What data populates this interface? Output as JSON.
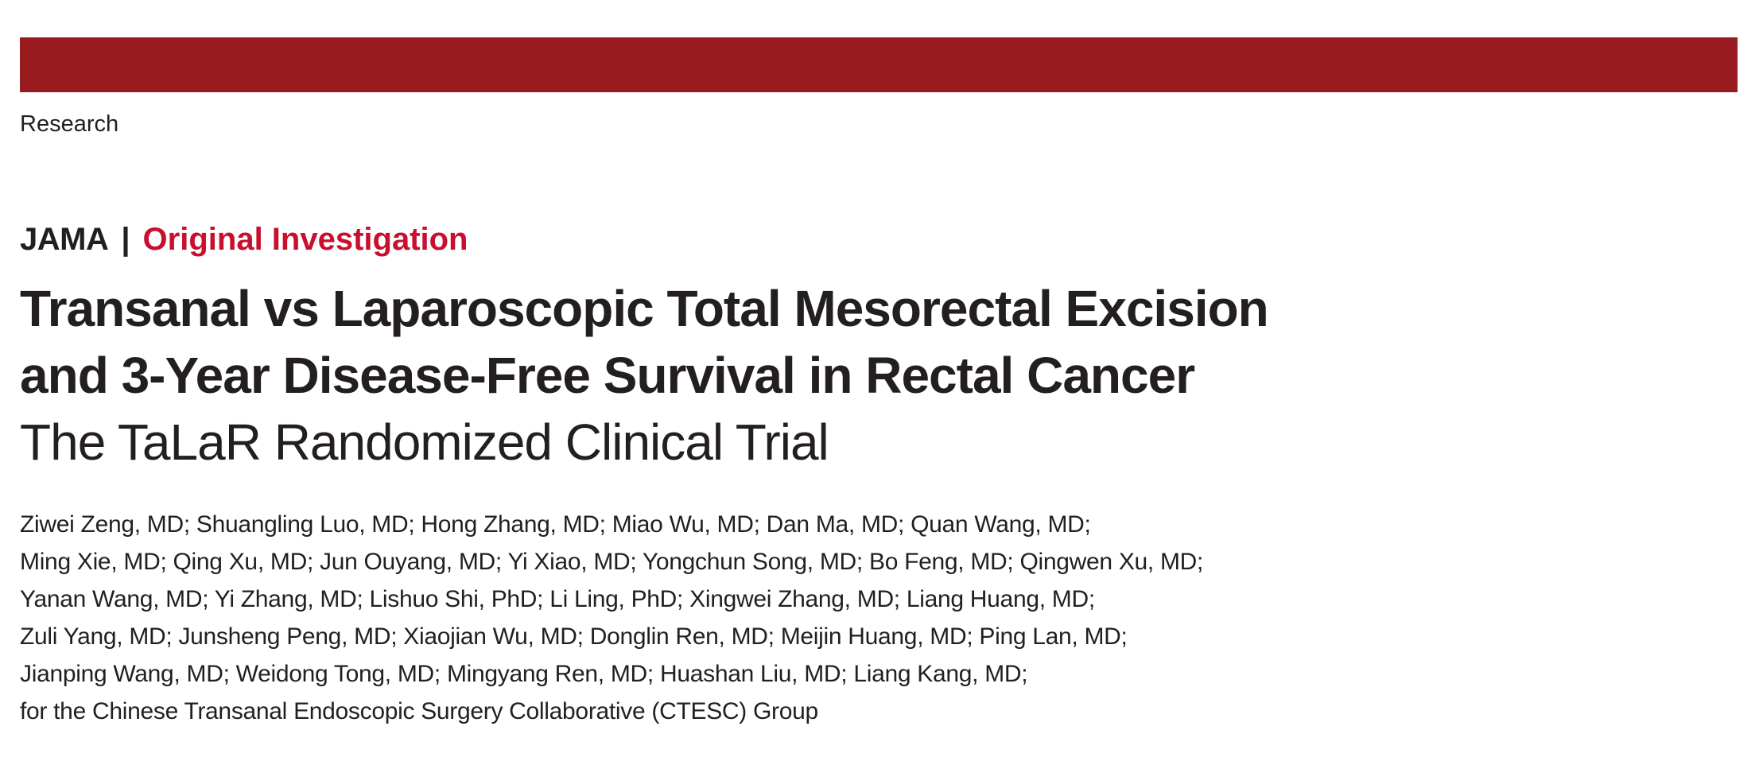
{
  "header": {
    "section": "Research",
    "journal": "JAMA",
    "separator": "|",
    "article_type": "Original Investigation"
  },
  "colors": {
    "top_bar": "#981b20",
    "article_type": "#c8102e",
    "text": "#231f20"
  },
  "title": {
    "lines": [
      "Transanal vs Laparoscopic Total Mesorectal Excision",
      "and 3-Year Disease-Free Survival in Rectal Cancer"
    ],
    "subtitle": "The TaLaR Randomized Clinical Trial"
  },
  "authors": {
    "lines": [
      "Ziwei Zeng, MD; Shuangling Luo, MD; Hong Zhang, MD; Miao Wu, MD; Dan Ma, MD; Quan Wang, MD;",
      "Ming Xie, MD; Qing Xu, MD; Jun Ouyang, MD; Yi Xiao, MD; Yongchun Song, MD; Bo Feng, MD; Qingwen Xu, MD;",
      "Yanan Wang, MD; Yi Zhang, MD; Lishuo Shi, PhD; Li Ling, PhD; Xingwei Zhang, MD; Liang Huang, MD;",
      "Zuli Yang, MD; Junsheng Peng, MD; Xiaojian Wu, MD; Donglin Ren, MD; Meijin Huang, MD; Ping Lan, MD;",
      "Jianping Wang, MD; Weidong Tong, MD; Mingyang Ren, MD; Huashan Liu, MD; Liang Kang, MD;",
      "for the Chinese Transanal Endoscopic Surgery Collaborative (CTESC) Group"
    ]
  }
}
